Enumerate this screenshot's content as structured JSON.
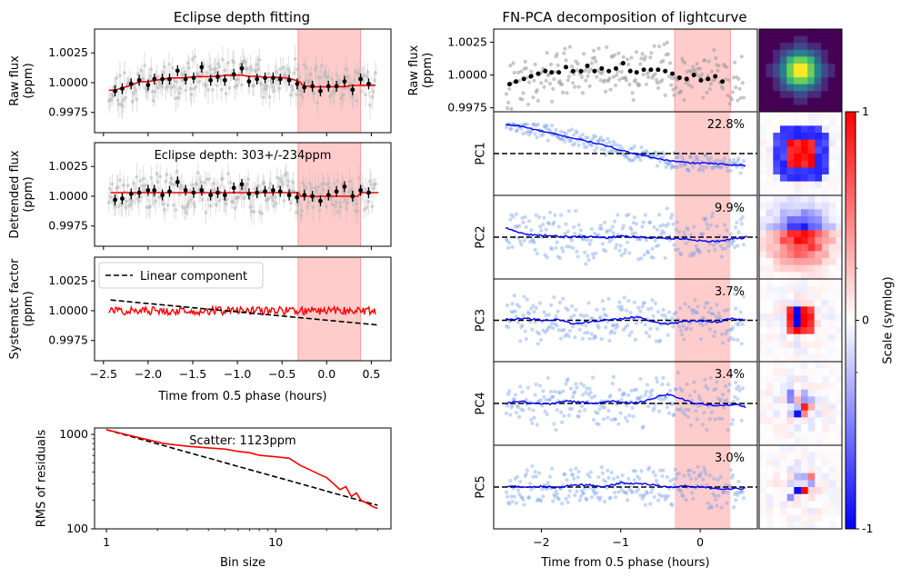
{
  "left_title": "Eclipse depth fitting",
  "right_title": "FN-PCA decomposition of lightcurve",
  "colors": {
    "model": "#ff0000",
    "binned": "#000000",
    "raw_points": "#b5b5b5",
    "eclipse_band": "#ff9999",
    "pc_points": "#6f9be8",
    "pc_line": "#0000ff",
    "colorbar_pos": "#ff0000",
    "colorbar_neg": "#0000ff"
  },
  "chart_data": [
    {
      "id": "raw-flux-left",
      "type": "scatter",
      "ylabel": "Raw flux\n(ppm)",
      "xlim": [
        -2.6,
        0.72
      ],
      "ylim": [
        0.9958,
        1.0045
      ],
      "yticks": [
        0.9975,
        1.0,
        1.0025
      ],
      "ytick_labels": [
        "0.9975",
        "1.0000",
        "1.0025"
      ],
      "eclipse_window": [
        -0.32,
        0.38
      ],
      "binned_x": [
        -2.37,
        -2.29,
        -2.19,
        -2.1,
        -2.0,
        -1.93,
        -1.84,
        -1.76,
        -1.67,
        -1.58,
        -1.49,
        -1.4,
        -1.3,
        -1.22,
        -1.14,
        -1.04,
        -0.95,
        -0.87,
        -0.78,
        -0.69,
        -0.6,
        -0.52,
        -0.42,
        -0.33,
        -0.25,
        -0.16,
        -0.07,
        0.02,
        0.11,
        0.2,
        0.29,
        0.38,
        0.47
      ],
      "binned_y": [
        0.9993,
        0.9995,
        0.9999,
        1.0002,
        0.9998,
        1.0003,
        1.0003,
        1.0003,
        1.001,
        1.0003,
        1.0004,
        1.0013,
        1.0002,
        1.0005,
        1.0002,
        1.0007,
        1.0012,
        1.0001,
        1.0003,
        1.0004,
        1.0004,
        1.0003,
        1.0002,
        0.9999,
        0.9996,
        0.9997,
        0.9993,
        0.9997,
        0.9997,
        1.0001,
        0.9994,
        1.0003,
        0.9999
      ],
      "model_y": [
        0.9994,
        0.9996,
        0.9998,
        1.0001,
        1.0001,
        1.0002,
        1.0003,
        1.0004,
        1.0004,
        1.0004,
        1.0005,
        1.0005,
        1.0005,
        1.0005,
        1.0006,
        1.0006,
        1.0006,
        1.0005,
        1.0005,
        1.0004,
        1.0004,
        1.0004,
        1.0003,
        1.0001,
        0.9998,
        0.9997,
        0.9997,
        0.9997,
        0.9997,
        0.9997,
        0.9998,
        0.9998,
        0.9998
      ]
    },
    {
      "id": "detrended-flux",
      "type": "scatter",
      "ylabel": "Detrended flux\n(ppm)",
      "annotation": "Eclipse depth: 303+/-234ppm",
      "xlim": [
        -2.6,
        0.72
      ],
      "ylim": [
        0.9958,
        1.0045
      ],
      "yticks": [
        0.9975,
        1.0,
        1.0025
      ],
      "ytick_labels": [
        "0.9975",
        "1.0000",
        "1.0025"
      ],
      "eclipse_window": [
        -0.32,
        0.38
      ],
      "model_level_out": 1.0003,
      "model_level_in": 1.0,
      "binned_y": [
        0.9997,
        0.9998,
        1.0002,
        1.0003,
        1.0005,
        1.0005,
        1.0001,
        1.0004,
        1.0012,
        1.0005,
        1.0003,
        1.0005,
        1.0001,
        1.0003,
        1.0001,
        1.0007,
        1.001,
        1.0002,
        1.0003,
        1.0004,
        1.0005,
        1.0004,
        1.0001,
        0.9999,
        1.0001,
        1.0,
        0.9996,
        1.0001,
        1.0004,
        1.0008,
        1.0,
        1.0005,
        1.0003
      ]
    },
    {
      "id": "systematic-factor",
      "type": "line",
      "ylabel": "Systematc factor\n(ppm)",
      "xlabel": "Time from 0.5 phase (hours)",
      "xlim": [
        -2.6,
        0.72
      ],
      "ylim": [
        0.9958,
        1.0045
      ],
      "xticks": [
        -2.5,
        -2.0,
        -1.5,
        -1.0,
        -0.5,
        0.0,
        0.5
      ],
      "xtick_labels": [
        "−2.5",
        "−2.0",
        "−1.5",
        "−1.0",
        "−0.5",
        "0.0",
        "0.5"
      ],
      "yticks": [
        0.9975,
        1.0,
        1.0025
      ],
      "ytick_labels": [
        "0.9975",
        "1.0000",
        "1.0025"
      ],
      "eclipse_window": [
        -0.32,
        0.38
      ],
      "legend": {
        "label": "Linear component",
        "placement": "upper-left"
      },
      "linear_component": {
        "x": [
          -2.42,
          0.58
        ],
        "y": [
          1.0009,
          0.9988
        ]
      },
      "systematic_level": 1.0
    },
    {
      "id": "rms-residuals",
      "type": "line",
      "xscale": "log",
      "yscale": "log",
      "ylabel": "RMS of residuals",
      "xlabel": "Bin size",
      "annotation": "Scatter: 1123ppm",
      "xlim": [
        0.85,
        48
      ],
      "ylim": [
        100,
        1170
      ],
      "xticks": [
        1,
        10
      ],
      "xtick_labels": [
        "1",
        "10"
      ],
      "yticks": [
        100,
        1000
      ],
      "ytick_labels": [
        "100",
        "1000"
      ],
      "x": [
        1,
        1.3,
        1.7,
        2.2,
        3,
        4,
        5,
        6,
        7,
        8,
        10,
        12,
        14,
        16,
        18,
        20,
        22,
        24,
        26,
        28,
        30,
        32,
        34,
        36,
        38,
        40
      ],
      "rms": [
        1123,
        1000,
        890,
        800,
        750,
        720,
        700,
        660,
        640,
        600,
        580,
        560,
        470,
        420,
        380,
        350,
        300,
        260,
        280,
        220,
        240,
        200,
        190,
        180,
        170,
        165
      ],
      "expected": [
        1123,
        985,
        861,
        757,
        648,
        562,
        502,
        458,
        424,
        397,
        355,
        324,
        300,
        281,
        265,
        251,
        239,
        229,
        220,
        212,
        205,
        198,
        193,
        187,
        182,
        178
      ]
    },
    {
      "id": "raw-flux-right",
      "type": "scatter",
      "ylabel": "Raw flux\n(ppm)",
      "xlim": [
        -2.6,
        0.72
      ],
      "ylim": [
        0.9972,
        1.0035
      ],
      "yticks": [
        0.9975,
        1.0,
        1.0025
      ],
      "ytick_labels": [
        "0.9975",
        "1.0000",
        "1.0025"
      ],
      "eclipse_window": [
        -0.32,
        0.38
      ],
      "binned_x": [
        -2.4,
        -2.32,
        -2.22,
        -2.13,
        -2.04,
        -1.95,
        -1.87,
        -1.78,
        -1.69,
        -1.6,
        -1.5,
        -1.42,
        -1.33,
        -1.24,
        -1.15,
        -1.06,
        -0.97,
        -0.88,
        -0.8,
        -0.71,
        -0.62,
        -0.53,
        -0.44,
        -0.35,
        -0.26,
        -0.17,
        -0.08,
        0.01,
        0.1,
        0.19,
        0.28
      ],
      "binned_y": [
        0.9993,
        0.9995,
        0.9997,
        0.9999,
        1.0001,
        1.0003,
        1.0002,
        1.0002,
        1.0006,
        1.0003,
        1.0003,
        1.0007,
        1.0003,
        1.0005,
        1.0003,
        1.0005,
        1.0009,
        1.0003,
        1.0002,
        1.0004,
        1.0004,
        1.0004,
        1.0003,
        1.0001,
        0.9998,
        0.9997,
        1.0,
        0.9996,
        0.9997,
        0.9999,
        0.9995
      ]
    },
    {
      "id": "principal-components",
      "type": "line",
      "xlabel": "Time from 0.5 phase (hours)",
      "xlim": [
        -2.6,
        0.72
      ],
      "xticks": [
        -2,
        -1,
        0
      ],
      "xtick_labels": [
        "−2",
        "−1",
        "0"
      ],
      "eclipse_window": [
        -0.32,
        0.38
      ],
      "series": [
        {
          "name": "PC1",
          "variance": "22.8%",
          "t": [
            -2.45,
            -2.3,
            -2.1,
            -1.9,
            -1.7,
            -1.5,
            -1.3,
            -1.1,
            -0.9,
            -0.7,
            -0.5,
            -0.3,
            -0.1,
            0.1,
            0.3,
            0.5,
            0.58
          ],
          "v": [
            1.0,
            0.98,
            0.85,
            0.72,
            0.6,
            0.48,
            0.35,
            0.2,
            0.05,
            -0.08,
            -0.2,
            -0.28,
            -0.33,
            -0.34,
            -0.38,
            -0.4,
            -0.43
          ]
        },
        {
          "name": "PC2",
          "variance": "9.9%",
          "t": [
            -2.45,
            -2.35,
            -2.2,
            -2.0,
            -1.8,
            -1.6,
            -1.4,
            -1.2,
            -1.0,
            -0.8,
            -0.6,
            -0.4,
            -0.2,
            0.0,
            0.2,
            0.4,
            0.55,
            0.6
          ],
          "v": [
            0.25,
            0.18,
            0.08,
            0.05,
            0.03,
            0.0,
            0.02,
            -0.02,
            0.03,
            0.0,
            -0.02,
            -0.03,
            -0.05,
            -0.1,
            -0.12,
            -0.05,
            -0.02,
            0.06
          ]
        },
        {
          "name": "PC3",
          "variance": "3.7%",
          "t": [
            -2.45,
            -2.2,
            -2.0,
            -1.8,
            -1.6,
            -1.4,
            -1.2,
            -1.0,
            -0.8,
            -0.6,
            -0.4,
            -0.2,
            0.0,
            0.2,
            0.4,
            0.58
          ],
          "v": [
            0.02,
            0.06,
            0.0,
            0.02,
            -0.1,
            -0.05,
            0.02,
            0.04,
            0.1,
            -0.03,
            -0.12,
            -0.02,
            -0.02,
            -0.05,
            0.05,
            0.0
          ]
        },
        {
          "name": "PC4",
          "variance": "3.4%",
          "t": [
            -2.45,
            -2.3,
            -2.1,
            -1.9,
            -1.7,
            -1.5,
            -1.3,
            -1.1,
            -0.9,
            -0.7,
            -0.5,
            -0.4,
            -0.3,
            -0.1,
            0.1,
            0.3,
            0.45,
            0.58
          ],
          "v": [
            0.0,
            0.06,
            0.02,
            -0.02,
            0.06,
            0.04,
            0.0,
            0.07,
            0.02,
            0.06,
            0.22,
            0.25,
            0.18,
            0.02,
            -0.04,
            -0.06,
            -0.02,
            -0.12
          ]
        },
        {
          "name": "PC5",
          "variance": "3.0%",
          "t": [
            -2.45,
            -2.2,
            -2.0,
            -1.8,
            -1.6,
            -1.4,
            -1.2,
            -1.0,
            -0.8,
            -0.6,
            -0.4,
            -0.2,
            0.0,
            0.2,
            0.4,
            0.58
          ],
          "v": [
            0.02,
            0.0,
            0.02,
            -0.02,
            0.05,
            0.06,
            0.0,
            0.12,
            0.1,
            0.06,
            0.0,
            0.02,
            0.0,
            -0.04,
            -0.05,
            -0.03
          ]
        }
      ]
    },
    {
      "id": "colorbar",
      "type": "heatmap",
      "label": "Scale (symlog)",
      "range": [
        -1,
        1
      ],
      "ticks": [
        -1,
        0,
        1
      ],
      "tick_labels": [
        "-1",
        "0",
        "1"
      ]
    }
  ]
}
